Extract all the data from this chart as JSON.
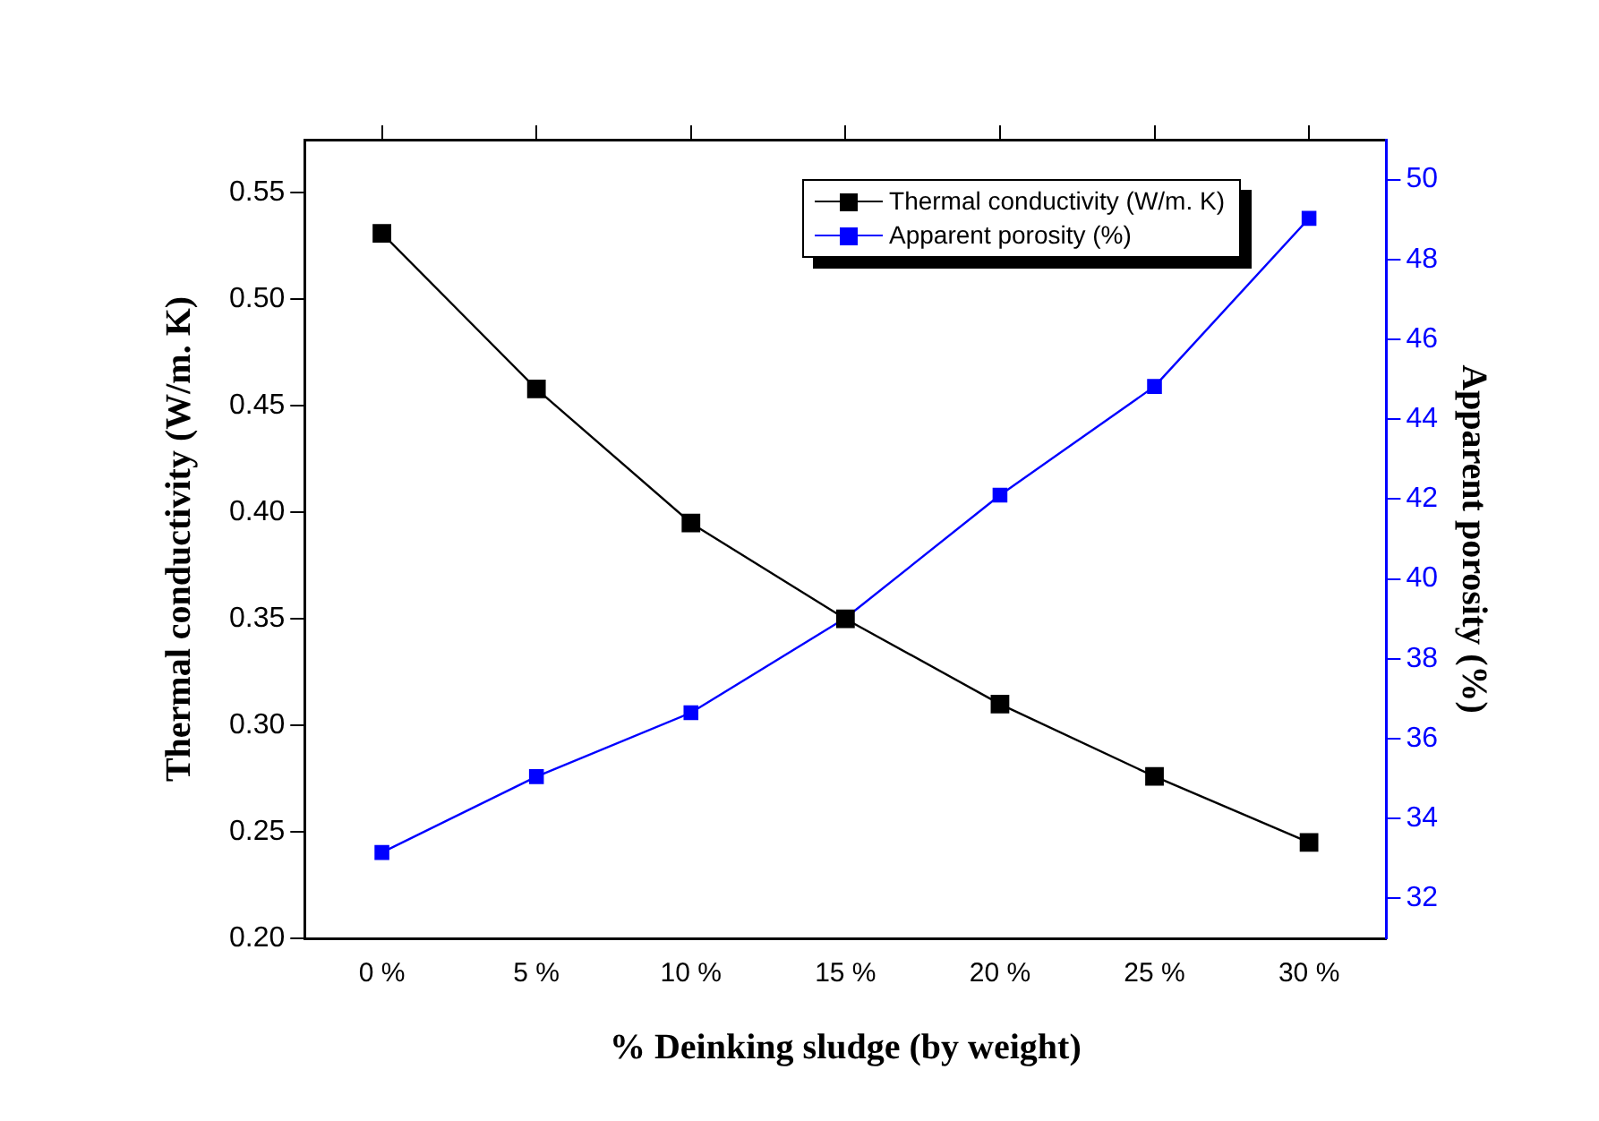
{
  "chart_data": {
    "type": "line",
    "xlabel": "% Deinking sludge (by weight)",
    "ylabel": "Thermal conductivity (W/m. K)",
    "y2label": "Apparent porosity (%)",
    "categories": [
      "0 %",
      "5 %",
      "10 %",
      "15 %",
      "20 %",
      "25 %",
      "30 %"
    ],
    "series": [
      {
        "name": "Thermal conductivity (W/m. K)",
        "color": "#000000",
        "values": [
          0.531,
          0.458,
          0.395,
          0.35,
          0.31,
          0.276,
          0.245
        ]
      },
      {
        "name": "Apparent porosity (%)",
        "color": "#0000ff",
        "axis": "y2",
        "values": [
          33.15,
          35.05,
          36.65,
          39.02,
          42.1,
          44.82,
          49.03
        ]
      }
    ],
    "ylim": [
      0.2,
      0.575
    ],
    "yticks": [
      {
        "value": 0.2,
        "label": "0.20"
      },
      0.25,
      {
        "value": 0.3,
        "label": "0.30"
      },
      0.35,
      {
        "value": 0.4,
        "label": "0.40"
      },
      0.45,
      {
        "value": 0.5,
        "label": "0.50"
      },
      0.55
    ],
    "y2lim": [
      31,
      51
    ],
    "y2ticks": [
      32,
      34,
      36,
      38,
      40,
      42,
      44,
      46,
      48,
      50
    ],
    "grid": false,
    "legend": "top right",
    "marker": "square",
    "line_style": "solid"
  }
}
